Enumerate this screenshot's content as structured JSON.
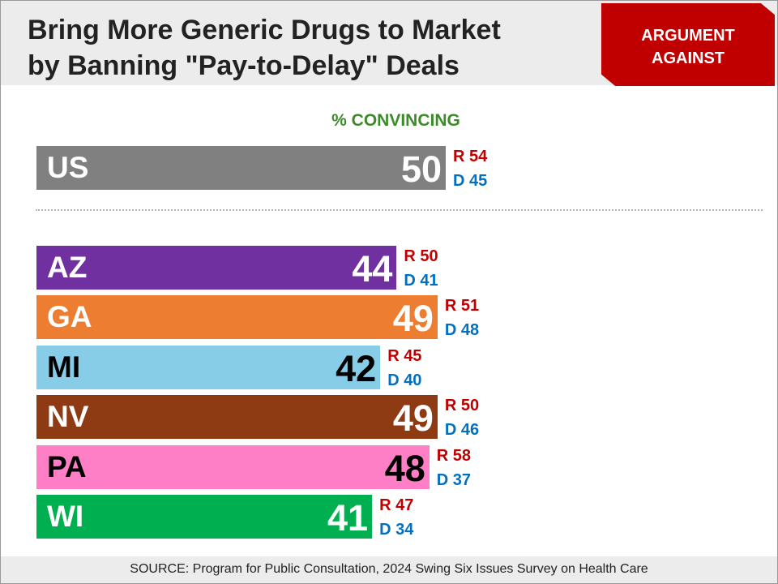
{
  "header": {
    "title_line1": "Bring More Generic Drugs to Market",
    "title_line2": "by Banning \"Pay-to-Delay\" Deals",
    "badge_line1": "ARGUMENT",
    "badge_line2": "AGAINST"
  },
  "subtitle": "% CONVINCING",
  "footer": "SOURCE: Program for Public Consultation, 2024 Swing Six Issues Survey on Health Care",
  "chart_data": {
    "type": "bar",
    "orientation": "horizontal",
    "value_label": "% CONVINCING",
    "xlim": [
      0,
      100
    ],
    "grid": false,
    "categories": [
      "US",
      "AZ",
      "GA",
      "MI",
      "NV",
      "PA",
      "WI"
    ],
    "values": [
      50,
      44,
      49,
      42,
      49,
      48,
      41
    ],
    "party_breakdown": {
      "R": [
        54,
        50,
        51,
        45,
        50,
        58,
        47
      ],
      "D": [
        45,
        41,
        48,
        40,
        46,
        37,
        34
      ]
    },
    "party_labels": {
      "R": "R",
      "D": "D"
    },
    "colors": [
      "#808080",
      "#7030a0",
      "#ed7d31",
      "#87cde8",
      "#8e3a13",
      "#ff7fc7",
      "#00b050"
    ],
    "text_colors": [
      "#ffffff",
      "#ffffff",
      "#ffffff",
      "#000000",
      "#ffffff",
      "#000000",
      "#ffffff"
    ],
    "party_colors": {
      "R": "#c00000",
      "D": "#0070c0"
    }
  }
}
